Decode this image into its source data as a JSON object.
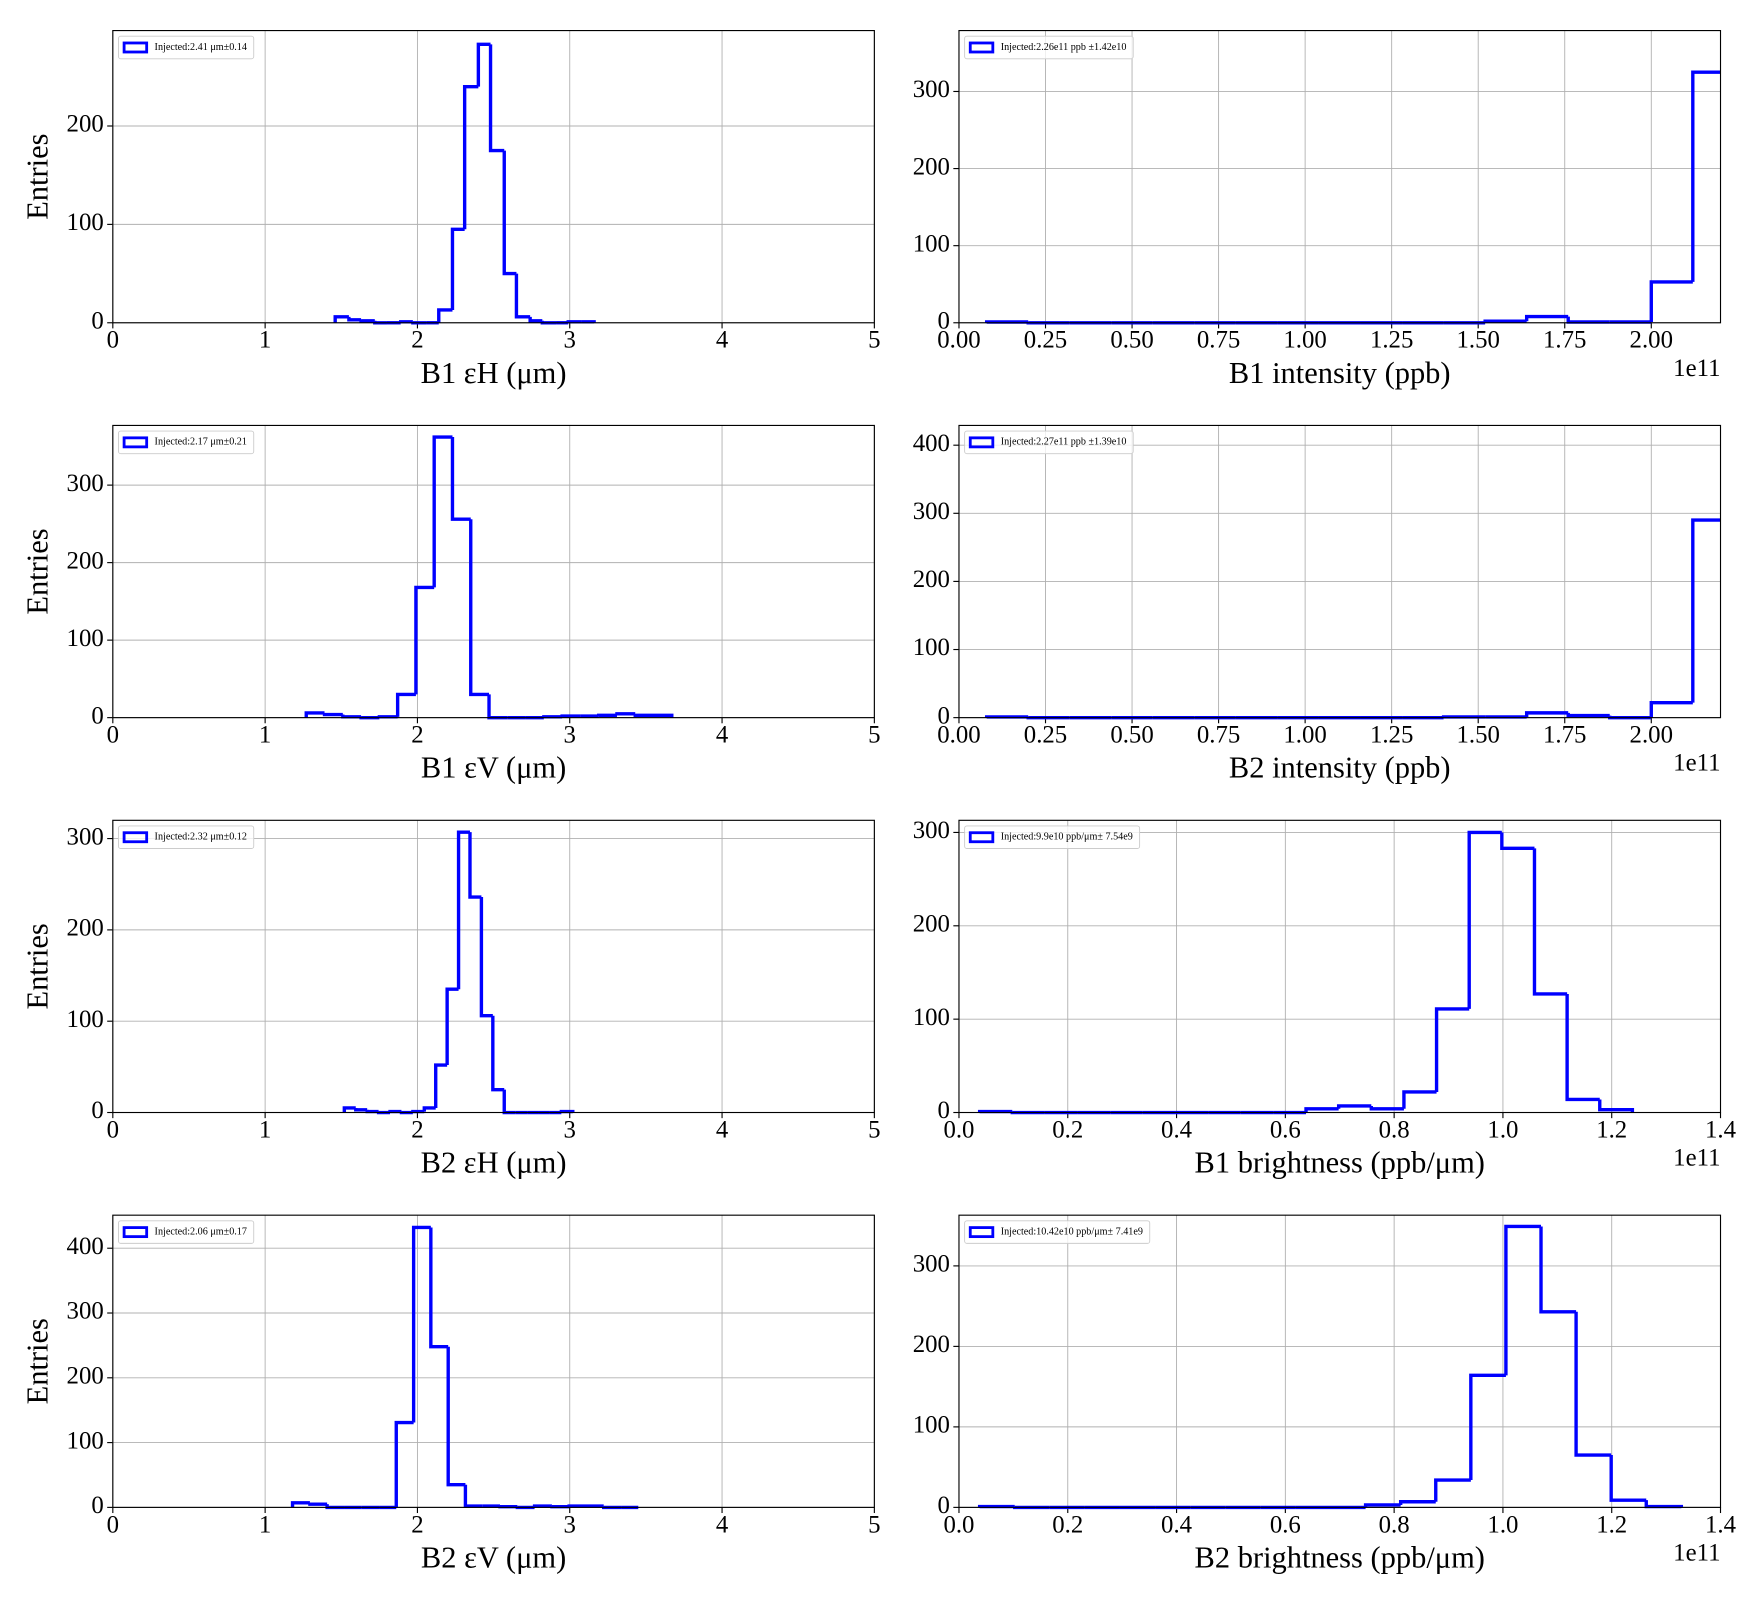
{
  "chart_data": [
    {
      "type": "histogram",
      "xlabel": "B1 εH (μm)",
      "ylabel": "Entries",
      "legend": "upper left",
      "grid": true,
      "bins": [
        1.46,
        1.55,
        1.63,
        1.72,
        1.8,
        1.89,
        1.97,
        2.06,
        2.14,
        2.23,
        2.31,
        2.4,
        2.48,
        2.57,
        2.65,
        2.74,
        2.82,
        2.91,
        2.99,
        3.08,
        3.16
      ],
      "series": [
        {
          "name": "Injected:2.41 μm±0.14",
          "color": "#0000ff",
          "values": [
            6,
            3,
            2,
            0,
            0,
            1,
            0,
            0,
            13,
            95,
            240,
            283,
            175,
            50,
            6,
            2,
            0,
            0,
            1,
            1
          ]
        }
      ],
      "xlim": [
        0,
        5
      ],
      "ylim": [
        0,
        297
      ],
      "xticks": [
        0,
        1,
        2,
        3,
        4,
        5
      ],
      "yticks": [
        0,
        100,
        200
      ]
    },
    {
      "type": "histogram",
      "xlabel": "B1 intensity (ppb)",
      "x_offset_text": "1e11",
      "legend": "upper left",
      "grid": true,
      "bins": [
        0.08,
        0.2,
        0.32,
        0.44,
        0.56,
        0.68,
        0.8,
        0.92,
        1.04,
        1.16,
        1.28,
        1.4,
        1.52,
        1.64,
        1.76,
        1.88,
        2.0,
        2.12,
        2.24
      ],
      "series": [
        {
          "name": "Injected:2.26e11 ppb ±1.42e10",
          "color": "#0000ff",
          "values": [
            1,
            0,
            0,
            0,
            0,
            0,
            0,
            0,
            0,
            0,
            0,
            0,
            2,
            8,
            1,
            1,
            53,
            325
          ]
        }
      ],
      "xlim": [
        0,
        2.2
      ],
      "ylim": [
        0,
        379
      ],
      "xticks": [
        {
          "value": 0,
          "label": "0.00"
        },
        {
          "value": 0.25,
          "label": "0.25"
        },
        {
          "value": 0.5,
          "label": "0.50"
        },
        {
          "value": 0.75,
          "label": "0.75"
        },
        {
          "value": 1,
          "label": "1.00"
        },
        {
          "value": 1.25,
          "label": "1.25"
        },
        {
          "value": 1.5,
          "label": "1.50"
        },
        {
          "value": 1.75,
          "label": "1.75"
        },
        {
          "value": 2,
          "label": "2.00"
        }
      ],
      "yticks": [
        0,
        100,
        200,
        300
      ]
    },
    {
      "type": "histogram",
      "xlabel": "B1 εV (μm)",
      "ylabel": "Entries",
      "legend": "upper left",
      "grid": true,
      "bins": [
        1.27,
        1.39,
        1.51,
        1.63,
        1.75,
        1.87,
        1.99,
        2.11,
        2.23,
        2.35,
        2.47,
        2.59,
        2.71,
        2.83,
        2.95,
        3.07,
        3.19,
        3.31,
        3.43,
        3.55,
        3.67
      ],
      "series": [
        {
          "name": "Injected:2.17 μm±0.21",
          "color": "#0000ff",
          "values": [
            6,
            4,
            1,
            0,
            1,
            30,
            168,
            362,
            256,
            30,
            0,
            0,
            0,
            1,
            2,
            2,
            3,
            5,
            3,
            3
          ]
        }
      ],
      "xlim": [
        0,
        5
      ],
      "ylim": [
        0,
        377
      ],
      "xticks": [
        0,
        1,
        2,
        3,
        4,
        5
      ],
      "yticks": [
        0,
        100,
        200,
        300
      ]
    },
    {
      "type": "histogram",
      "xlabel": "B2 intensity (ppb)",
      "x_offset_text": "1e11",
      "legend": "upper left",
      "grid": true,
      "bins": [
        0.08,
        0.2,
        0.32,
        0.44,
        0.56,
        0.68,
        0.8,
        0.92,
        1.04,
        1.16,
        1.28,
        1.4,
        1.52,
        1.64,
        1.76,
        1.88,
        2.0,
        2.12,
        2.24
      ],
      "series": [
        {
          "name": "Injected:2.27e11 ppb ±1.39e10",
          "color": "#0000ff",
          "values": [
            1,
            0,
            0,
            0,
            0,
            0,
            0,
            0,
            0,
            0,
            0,
            1,
            1,
            7,
            3,
            0,
            22,
            290
          ]
        }
      ],
      "xlim": [
        0,
        2.2
      ],
      "ylim": [
        0,
        429
      ],
      "xticks": [
        {
          "value": 0,
          "label": "0.00"
        },
        {
          "value": 0.25,
          "label": "0.25"
        },
        {
          "value": 0.5,
          "label": "0.50"
        },
        {
          "value": 0.75,
          "label": "0.75"
        },
        {
          "value": 1,
          "label": "1.00"
        },
        {
          "value": 1.25,
          "label": "1.25"
        },
        {
          "value": 1.5,
          "label": "1.50"
        },
        {
          "value": 1.75,
          "label": "1.75"
        },
        {
          "value": 2,
          "label": "2.00"
        }
      ],
      "yticks": [
        0,
        100,
        200,
        300,
        400
      ]
    },
    {
      "type": "histogram",
      "xlabel": "B2 εH (μm)",
      "ylabel": "Entries",
      "legend": "upper left",
      "grid": true,
      "bins": [
        1.52,
        1.595,
        1.67,
        1.745,
        1.82,
        1.895,
        1.97,
        2.045,
        2.12,
        2.195,
        2.27,
        2.345,
        2.42,
        2.495,
        2.57,
        2.645,
        2.72,
        2.795,
        2.87,
        2.945,
        3.02
      ],
      "series": [
        {
          "name": "Injected:2.32 μm±0.12",
          "color": "#0000ff",
          "values": [
            5,
            3,
            1,
            0,
            1,
            0,
            1,
            5,
            52,
            135,
            307,
            236,
            106,
            25,
            0,
            0,
            0,
            0,
            0,
            1
          ]
        }
      ],
      "xlim": [
        0,
        5
      ],
      "ylim": [
        0,
        320
      ],
      "xticks": [
        0,
        1,
        2,
        3,
        4,
        5
      ],
      "yticks": [
        0,
        100,
        200,
        300
      ]
    },
    {
      "type": "histogram",
      "xlabel": "B1 brightness (ppb/μm)",
      "x_offset_text": "1e11",
      "legend": "upper left",
      "grid": true,
      "bins": [
        0.038,
        0.098,
        0.158,
        0.218,
        0.278,
        0.338,
        0.398,
        0.458,
        0.518,
        0.578,
        0.638,
        0.698,
        0.758,
        0.818,
        0.878,
        0.938,
        0.998,
        1.058,
        1.118,
        1.178,
        1.238
      ],
      "series": [
        {
          "name": "Injected:9.9e10 ppb/μm± 7.54e9",
          "color": "#0000ff",
          "values": [
            1,
            0,
            0,
            0,
            0,
            0,
            0,
            0,
            0,
            0,
            4,
            7,
            4,
            22,
            111,
            300,
            283,
            127,
            14,
            3
          ]
        }
      ],
      "xlim": [
        0,
        1.4
      ],
      "ylim": [
        0,
        313
      ],
      "xticks": [
        {
          "value": 0,
          "label": "0.0"
        },
        0.2,
        0.4,
        0.6,
        0.8,
        {
          "value": 1,
          "label": "1.0"
        },
        1.2,
        1.4
      ],
      "yticks": [
        0,
        100,
        200,
        300
      ]
    },
    {
      "type": "histogram",
      "xlabel": "B2 εV (μm)",
      "ylabel": "Entries",
      "legend": "upper left",
      "grid": true,
      "bins": [
        1.18,
        1.294,
        1.407,
        1.521,
        1.634,
        1.748,
        1.861,
        1.975,
        2.088,
        2.202,
        2.315,
        2.429,
        2.542,
        2.656,
        2.769,
        2.883,
        2.996,
        3.11,
        3.223,
        3.337,
        3.45
      ],
      "series": [
        {
          "name": "Injected:2.06 μm±0.17",
          "color": "#0000ff",
          "values": [
            7,
            5,
            0,
            0,
            0,
            0,
            131,
            432,
            248,
            35,
            2,
            2,
            1,
            0,
            2,
            1,
            2,
            2,
            0,
            0
          ]
        }
      ],
      "xlim": [
        0,
        5
      ],
      "ylim": [
        0,
        451
      ],
      "xticks": [
        0,
        1,
        2,
        3,
        4,
        5
      ],
      "yticks": [
        0,
        100,
        200,
        300,
        400
      ]
    },
    {
      "type": "histogram",
      "xlabel": "B2 brightness (ppb/μm)",
      "x_offset_text": "1e11",
      "legend": "upper left",
      "grid": true,
      "bins": [
        0.038,
        0.1025,
        0.167,
        0.2315,
        0.296,
        0.3605,
        0.425,
        0.4895,
        0.554,
        0.6185,
        0.683,
        0.7475,
        0.812,
        0.8765,
        0.941,
        1.0055,
        1.07,
        1.1345,
        1.199,
        1.2635,
        1.328
      ],
      "series": [
        {
          "name": "Injected:10.42e10 ppb/μm± 7.41e9",
          "color": "#0000ff",
          "values": [
            1,
            0,
            0,
            0,
            0,
            0,
            0,
            0,
            0,
            0,
            0,
            3,
            7,
            34,
            164,
            349,
            243,
            65,
            9,
            1
          ]
        }
      ],
      "xlim": [
        0,
        1.4
      ],
      "ylim": [
        0,
        363
      ],
      "xticks": [
        {
          "value": 0,
          "label": "0.0"
        },
        0.2,
        0.4,
        0.6,
        0.8,
        {
          "value": 1,
          "label": "1.0"
        },
        1.2,
        1.4
      ],
      "yticks": [
        0,
        100,
        200,
        300
      ]
    }
  ]
}
